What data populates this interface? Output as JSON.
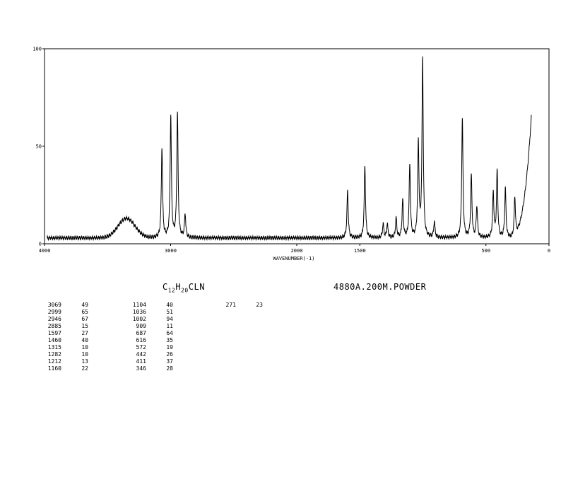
{
  "formula": {
    "el1": "C",
    "n1": "12",
    "el2": "H",
    "n2": "20",
    "el3": "CLN"
  },
  "conditions": "4880A.200M.POWDER",
  "chart_data": {
    "type": "line",
    "title": "",
    "xlabel": "WAVENUMBER(-1)",
    "ylabel": "",
    "xlim": [
      4000,
      0
    ],
    "ylim": [
      0,
      100
    ],
    "x_ticks": [
      {
        "value": 4000,
        "label": "4000"
      },
      {
        "value": 3000,
        "label": "3000"
      },
      {
        "value": 2000,
        "label": "2000"
      },
      {
        "value": 1500,
        "label": "1500"
      },
      {
        "value": 500,
        "label": "500"
      },
      {
        "value": 0,
        "label": "0"
      }
    ],
    "y_ticks": [
      {
        "value": 100,
        "label": "100"
      },
      {
        "value": 50,
        "label": "50"
      },
      {
        "value": 0,
        "label": "0"
      }
    ],
    "grid": false,
    "baseline": {
      "start_wavenumber": 3980,
      "end_wavenumber": 140,
      "level": 3
    },
    "broad_bands": [
      {
        "center": 3350,
        "height": 10,
        "width": 95
      }
    ],
    "sharp_peaks": [
      {
        "x": 3069,
        "y": 49
      },
      {
        "x": 2999,
        "y": 65
      },
      {
        "x": 2946,
        "y": 67
      },
      {
        "x": 2885,
        "y": 15
      },
      {
        "x": 1597,
        "y": 27
      },
      {
        "x": 1460,
        "y": 40
      },
      {
        "x": 1315,
        "y": 10
      },
      {
        "x": 1282,
        "y": 10
      },
      {
        "x": 1212,
        "y": 13
      },
      {
        "x": 1160,
        "y": 22
      },
      {
        "x": 1104,
        "y": 40
      },
      {
        "x": 1036,
        "y": 51
      },
      {
        "x": 1002,
        "y": 94
      },
      {
        "x": 909,
        "y": 11
      },
      {
        "x": 687,
        "y": 64
      },
      {
        "x": 616,
        "y": 35
      },
      {
        "x": 572,
        "y": 19
      },
      {
        "x": 442,
        "y": 26
      },
      {
        "x": 411,
        "y": 37
      },
      {
        "x": 346,
        "y": 28
      },
      {
        "x": 271,
        "y": 23
      }
    ],
    "rising_tail": {
      "end_wavenumber": 140,
      "end_level": 80
    },
    "peak_table": [
      [
        {
          "x": "3069",
          "y": "49"
        },
        {
          "x": "2999",
          "y": "65"
        },
        {
          "x": "2946",
          "y": "67"
        },
        {
          "x": "2885",
          "y": "15"
        },
        {
          "x": "1597",
          "y": "27"
        },
        {
          "x": "1460",
          "y": "40"
        },
        {
          "x": "1315",
          "y": "10"
        },
        {
          "x": "1282",
          "y": "10"
        },
        {
          "x": "1212",
          "y": "13"
        },
        {
          "x": "1160",
          "y": "22"
        }
      ],
      [
        {
          "x": "1104",
          "y": "40"
        },
        {
          "x": "1036",
          "y": "51"
        },
        {
          "x": "1002",
          "y": "94"
        },
        {
          "x": "909",
          "y": "11"
        },
        {
          "x": "687",
          "y": "64"
        },
        {
          "x": "616",
          "y": "35"
        },
        {
          "x": "572",
          "y": "19"
        },
        {
          "x": "442",
          "y": "26"
        },
        {
          "x": "411",
          "y": "37"
        },
        {
          "x": "346",
          "y": "28"
        }
      ],
      [
        {
          "x": "271",
          "y": "23"
        }
      ]
    ]
  }
}
